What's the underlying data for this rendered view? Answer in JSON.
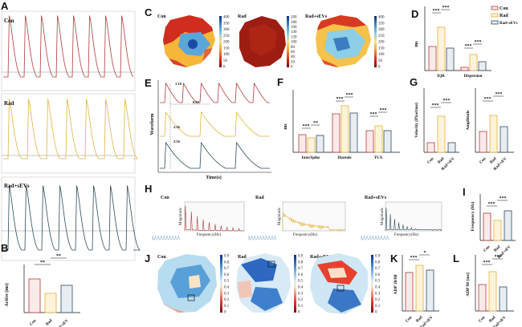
{
  "panels": {
    "A": {
      "label": "A",
      "traces": [
        "Con",
        "Rad",
        "Rad+sEVs"
      ],
      "colors": [
        "#b13a3a",
        "#e3b23c",
        "#2f4a5c"
      ]
    },
    "B": {
      "label": "B",
      "ylabel": "Active (ms)",
      "sig": [
        "**",
        "**"
      ],
      "cats": [
        "Con",
        "Rad",
        "Rad+sEV"
      ]
    },
    "C": {
      "label": "C",
      "titles": [
        "Con",
        "Rad",
        "Rad+sEVs"
      ],
      "cb1": [
        "400",
        "350",
        "300",
        "250",
        "200",
        "150",
        "100",
        "50",
        "0"
      ],
      "cb2": [
        "200",
        "180",
        "160",
        "140",
        "120",
        "100",
        "80",
        "60",
        "40",
        "20",
        "0"
      ],
      "cb3": [
        "400",
        "350",
        "300",
        "250",
        "200",
        "150",
        "100",
        "50",
        "0"
      ]
    },
    "D": {
      "label": "D",
      "ylabel": "ms",
      "legend": [
        "Con",
        "Rad",
        "Rad+sEVs"
      ],
      "groups": [
        "IQR",
        "Dispersion"
      ],
      "sig": [
        "***",
        "***",
        "***",
        "***"
      ]
    },
    "E": {
      "label": "E",
      "ylabel": "Waveform",
      "xlabel": "Time(s)",
      "annot": [
        "1.18",
        "0.83",
        "2.56",
        "2.56"
      ]
    },
    "F": {
      "label": "F",
      "ylabel": "ms",
      "groups": [
        "InterSpike",
        "Diastole",
        "TUA"
      ],
      "sig": [
        "***",
        "**",
        "***",
        "***",
        "***",
        "***"
      ]
    },
    "G": {
      "label": "G",
      "ylabel1": "Velocity (Pixel/ms)",
      "ylabel2": "Amplitude",
      "sig": [
        "***",
        "***",
        "***",
        "***"
      ],
      "cats": [
        "Con",
        "Rad",
        "Rad+sEV"
      ]
    },
    "H": {
      "label": "H",
      "titles": [
        "Con",
        "Rad",
        "Rad+sEVs"
      ],
      "xlabel": "Frequency(Hz)",
      "ylabel": "Magnitude"
    },
    "I": {
      "label": "I",
      "ylabel": "Frequency (Hz)",
      "sig": [
        "***",
        "***"
      ],
      "cats": [
        "Con",
        "Rad",
        "Rad+sEV"
      ]
    },
    "J": {
      "label": "J",
      "titles": [
        "Con",
        "Rad",
        "Rad+sEVs"
      ],
      "cb": [
        "0.9",
        "0.8",
        "0.7",
        "0.6",
        "0.5",
        "0.4",
        "0.3",
        "0.2",
        "0.1",
        "0"
      ]
    },
    "K": {
      "label": "K",
      "ylabel": "ADP 30/80",
      "sig": [
        "***",
        "*"
      ],
      "cats": [
        "Con",
        "Rad",
        "Rad+sEV"
      ]
    },
    "L": {
      "label": "L",
      "ylabel": "ADP 90 (ms)",
      "sig": [
        "***",
        "***"
      ],
      "cats": [
        "Con",
        "Rad",
        "Rad+sEV"
      ]
    }
  }
}
